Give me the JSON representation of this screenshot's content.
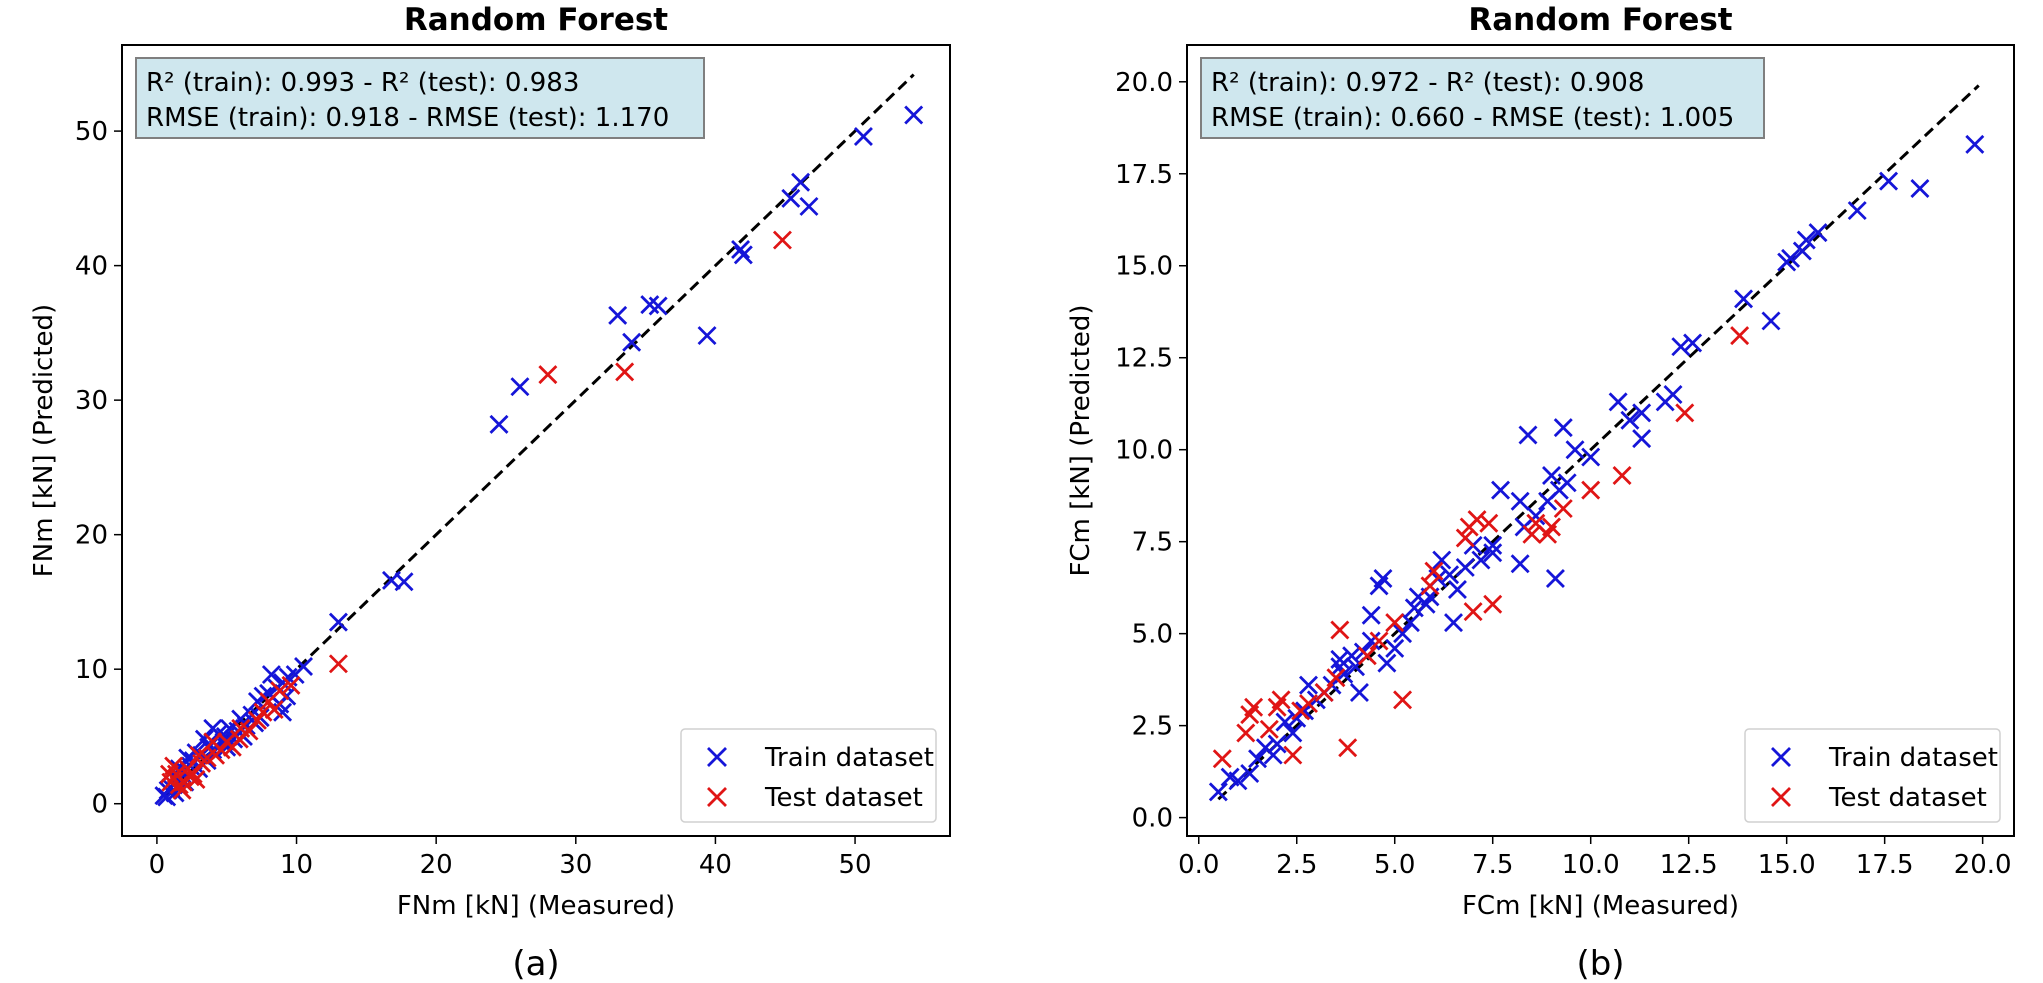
{
  "colors": {
    "train": "#1515d8",
    "test": "#e01515",
    "statbox_fill": "#cfe7ee",
    "statbox_edge": "#7f7f7f",
    "diagonal": "#000000"
  },
  "chart_data": [
    {
      "type": "scatter",
      "title": "Random Forest",
      "xlabel": "FNm [kN] (Measured)",
      "ylabel": "FNm [kN] (Predicted)",
      "caption": "(a)",
      "xlim": [
        -2.5,
        56.8
      ],
      "ylim": [
        -2.4,
        56.4
      ],
      "xticks": [
        0,
        10,
        20,
        30,
        40,
        50
      ],
      "yticks": [
        0,
        10,
        20,
        30,
        40,
        50
      ],
      "stats_line1": "R² (train): 0.993 - R² (test): 0.983",
      "stats_line2": "RMSE (train): 0.918 - RMSE (test): 1.170",
      "diagonal": [
        0.5,
        54.2
      ],
      "legend": {
        "position": "lower-right",
        "entries": [
          "Train dataset",
          "Test dataset"
        ]
      },
      "series": [
        {
          "name": "Train dataset",
          "points": [
            [
              54.2,
              51.2
            ],
            [
              50.6,
              49.6
            ],
            [
              46.1,
              46.2
            ],
            [
              45.4,
              45.0
            ],
            [
              46.7,
              44.4
            ],
            [
              41.8,
              41.2
            ],
            [
              42.0,
              40.8
            ],
            [
              35.3,
              37.1
            ],
            [
              35.9,
              37.0
            ],
            [
              33.0,
              36.3
            ],
            [
              34.0,
              34.3
            ],
            [
              39.4,
              34.8
            ],
            [
              26.0,
              31.0
            ],
            [
              24.5,
              28.2
            ],
            [
              17.7,
              16.5
            ],
            [
              16.8,
              16.6
            ],
            [
              13.0,
              13.5
            ],
            [
              10.5,
              10.2
            ],
            [
              9.9,
              9.6
            ],
            [
              9.4,
              9.4
            ],
            [
              9.0,
              9.0
            ],
            [
              8.2,
              9.6
            ],
            [
              8.6,
              8.6
            ],
            [
              8.0,
              8.2
            ],
            [
              7.6,
              8.0
            ],
            [
              7.2,
              7.6
            ],
            [
              9.3,
              8.0
            ],
            [
              8.8,
              7.4
            ],
            [
              9.0,
              6.8
            ],
            [
              7.4,
              6.4
            ],
            [
              6.8,
              6.6
            ],
            [
              6.0,
              6.3
            ],
            [
              6.4,
              5.8
            ],
            [
              5.8,
              5.4
            ],
            [
              5.2,
              5.6
            ],
            [
              4.9,
              5.0
            ],
            [
              4.4,
              5.2
            ],
            [
              4.0,
              5.6
            ],
            [
              4.8,
              4.6
            ],
            [
              4.0,
              4.0
            ],
            [
              3.7,
              4.2
            ],
            [
              3.4,
              4.8
            ],
            [
              3.2,
              3.6
            ],
            [
              2.8,
              3.8
            ],
            [
              2.6,
              3.2
            ],
            [
              2.4,
              2.8
            ],
            [
              2.2,
              3.4
            ],
            [
              2.0,
              2.4
            ],
            [
              1.8,
              2.2
            ],
            [
              1.6,
              2.6
            ],
            [
              1.5,
              1.8
            ],
            [
              1.2,
              1.4
            ],
            [
              1.0,
              1.2
            ],
            [
              0.8,
              1.0
            ],
            [
              0.5,
              0.6
            ],
            [
              0.7,
              0.5
            ],
            [
              1.3,
              0.8
            ],
            [
              2.0,
              1.6
            ],
            [
              3.0,
              2.6
            ],
            [
              3.6,
              3.2
            ],
            [
              5.5,
              4.8
            ],
            [
              6.2,
              5.0
            ],
            [
              7.0,
              6.0
            ],
            [
              5.0,
              4.2
            ]
          ]
        },
        {
          "name": "Test dataset",
          "points": [
            [
              44.8,
              41.9
            ],
            [
              28.0,
              31.9
            ],
            [
              33.5,
              32.1
            ],
            [
              13.0,
              10.4
            ],
            [
              9.6,
              8.8
            ],
            [
              8.8,
              8.4
            ],
            [
              8.0,
              7.6
            ],
            [
              7.6,
              6.8
            ],
            [
              7.2,
              6.2
            ],
            [
              6.6,
              5.4
            ],
            [
              5.9,
              4.8
            ],
            [
              5.4,
              4.2
            ],
            [
              5.0,
              4.6
            ],
            [
              4.6,
              4.0
            ],
            [
              4.2,
              3.6
            ],
            [
              3.6,
              3.4
            ],
            [
              3.2,
              3.0
            ],
            [
              3.0,
              3.6
            ],
            [
              2.6,
              2.2
            ],
            [
              2.4,
              2.0
            ],
            [
              2.2,
              2.6
            ],
            [
              1.9,
              1.6
            ],
            [
              1.6,
              1.4
            ],
            [
              1.4,
              2.2
            ],
            [
              1.2,
              2.8
            ],
            [
              1.0,
              1.6
            ],
            [
              0.9,
              2.2
            ],
            [
              1.8,
              1.0
            ],
            [
              2.8,
              1.8
            ],
            [
              6.0,
              5.6
            ],
            [
              8.4,
              7.0
            ],
            [
              4.0,
              4.6
            ]
          ]
        }
      ]
    },
    {
      "type": "scatter",
      "title": "Random Forest",
      "xlabel": "FCm [kN] (Measured)",
      "ylabel": "FCm [kN] (Predicted)",
      "caption": "(b)",
      "xlim": [
        -0.3,
        20.8
      ],
      "ylim": [
        -0.5,
        21.0
      ],
      "xticks": [
        0.0,
        2.5,
        5.0,
        7.5,
        10.0,
        12.5,
        15.0,
        17.5,
        20.0
      ],
      "yticks": [
        0.0,
        2.5,
        5.0,
        7.5,
        10.0,
        12.5,
        15.0,
        17.5,
        20.0
      ],
      "tick_format": 1,
      "stats_line1": "R² (train): 0.972 - R² (test): 0.908",
      "stats_line2": "RMSE (train): 0.660 - RMSE (test): 1.005",
      "diagonal": [
        0.5,
        19.9
      ],
      "legend": {
        "position": "lower-right",
        "entries": [
          "Train dataset",
          "Test dataset"
        ]
      },
      "series": [
        {
          "name": "Train dataset",
          "points": [
            [
              19.8,
              18.3
            ],
            [
              18.4,
              17.1
            ],
            [
              17.6,
              17.3
            ],
            [
              16.8,
              16.5
            ],
            [
              15.5,
              15.7
            ],
            [
              15.8,
              15.9
            ],
            [
              15.4,
              15.4
            ],
            [
              15.0,
              15.1
            ],
            [
              15.1,
              15.2
            ],
            [
              14.6,
              13.5
            ],
            [
              13.9,
              14.1
            ],
            [
              12.6,
              12.9
            ],
            [
              12.3,
              12.8
            ],
            [
              12.1,
              11.5
            ],
            [
              11.9,
              11.3
            ],
            [
              11.3,
              11.0
            ],
            [
              11.0,
              10.8
            ],
            [
              10.7,
              11.3
            ],
            [
              11.3,
              10.3
            ],
            [
              10.0,
              9.8
            ],
            [
              9.6,
              10.0
            ],
            [
              9.3,
              10.6
            ],
            [
              8.4,
              10.4
            ],
            [
              9.0,
              9.3
            ],
            [
              9.4,
              9.1
            ],
            [
              9.2,
              8.9
            ],
            [
              8.9,
              8.6
            ],
            [
              8.6,
              8.2
            ],
            [
              8.3,
              7.9
            ],
            [
              8.2,
              8.6
            ],
            [
              7.7,
              8.9
            ],
            [
              7.5,
              7.4
            ],
            [
              7.5,
              7.2
            ],
            [
              7.2,
              7.0
            ],
            [
              7.0,
              7.4
            ],
            [
              6.8,
              6.8
            ],
            [
              6.6,
              6.2
            ],
            [
              6.4,
              6.6
            ],
            [
              6.2,
              7.0
            ],
            [
              6.1,
              6.5
            ],
            [
              5.9,
              6.0
            ],
            [
              5.8,
              5.8
            ],
            [
              5.6,
              6.0
            ],
            [
              5.5,
              5.7
            ],
            [
              5.4,
              5.3
            ],
            [
              5.2,
              5.0
            ],
            [
              5.0,
              4.6
            ],
            [
              4.8,
              4.2
            ],
            [
              4.7,
              6.5
            ],
            [
              4.6,
              6.3
            ],
            [
              4.4,
              5.5
            ],
            [
              4.4,
              4.8
            ],
            [
              4.2,
              4.5
            ],
            [
              4.0,
              4.1
            ],
            [
              3.9,
              4.4
            ],
            [
              3.7,
              3.9
            ],
            [
              3.6,
              4.1
            ],
            [
              3.4,
              3.6
            ],
            [
              3.2,
              3.4
            ],
            [
              3.0,
              3.2
            ],
            [
              2.8,
              3.6
            ],
            [
              2.7,
              2.9
            ],
            [
              2.5,
              2.7
            ],
            [
              2.4,
              2.3
            ],
            [
              2.2,
              2.6
            ],
            [
              2.0,
              2.0
            ],
            [
              1.9,
              1.7
            ],
            [
              1.7,
              1.9
            ],
            [
              1.5,
              1.6
            ],
            [
              1.3,
              1.2
            ],
            [
              1.0,
              1.0
            ],
            [
              0.8,
              1.1
            ],
            [
              0.5,
              0.7
            ],
            [
              9.1,
              6.5
            ],
            [
              8.2,
              6.9
            ],
            [
              6.5,
              5.3
            ],
            [
              4.1,
              3.4
            ],
            [
              3.6,
              4.3
            ]
          ]
        },
        {
          "name": "Test dataset",
          "points": [
            [
              13.8,
              13.1
            ],
            [
              12.4,
              11.0
            ],
            [
              10.8,
              9.3
            ],
            [
              10.0,
              8.9
            ],
            [
              9.3,
              8.4
            ],
            [
              9.0,
              7.9
            ],
            [
              8.9,
              7.7
            ],
            [
              8.6,
              8.0
            ],
            [
              7.5,
              5.8
            ],
            [
              7.0,
              5.6
            ],
            [
              7.1,
              8.1
            ],
            [
              6.9,
              7.9
            ],
            [
              6.8,
              7.6
            ],
            [
              6.0,
              6.7
            ],
            [
              5.9,
              6.3
            ],
            [
              5.2,
              3.2
            ],
            [
              5.0,
              5.3
            ],
            [
              4.6,
              4.8
            ],
            [
              4.3,
              4.4
            ],
            [
              3.8,
              1.9
            ],
            [
              3.6,
              5.1
            ],
            [
              3.5,
              3.8
            ],
            [
              3.2,
              3.4
            ],
            [
              2.8,
              3.1
            ],
            [
              2.6,
              2.9
            ],
            [
              2.4,
              1.7
            ],
            [
              2.1,
              3.2
            ],
            [
              2.0,
              3.0
            ],
            [
              1.8,
              2.4
            ],
            [
              1.4,
              3.0
            ],
            [
              1.3,
              2.8
            ],
            [
              1.2,
              2.3
            ],
            [
              0.6,
              1.6
            ],
            [
              7.4,
              8.0
            ],
            [
              8.5,
              7.7
            ]
          ]
        }
      ]
    }
  ]
}
